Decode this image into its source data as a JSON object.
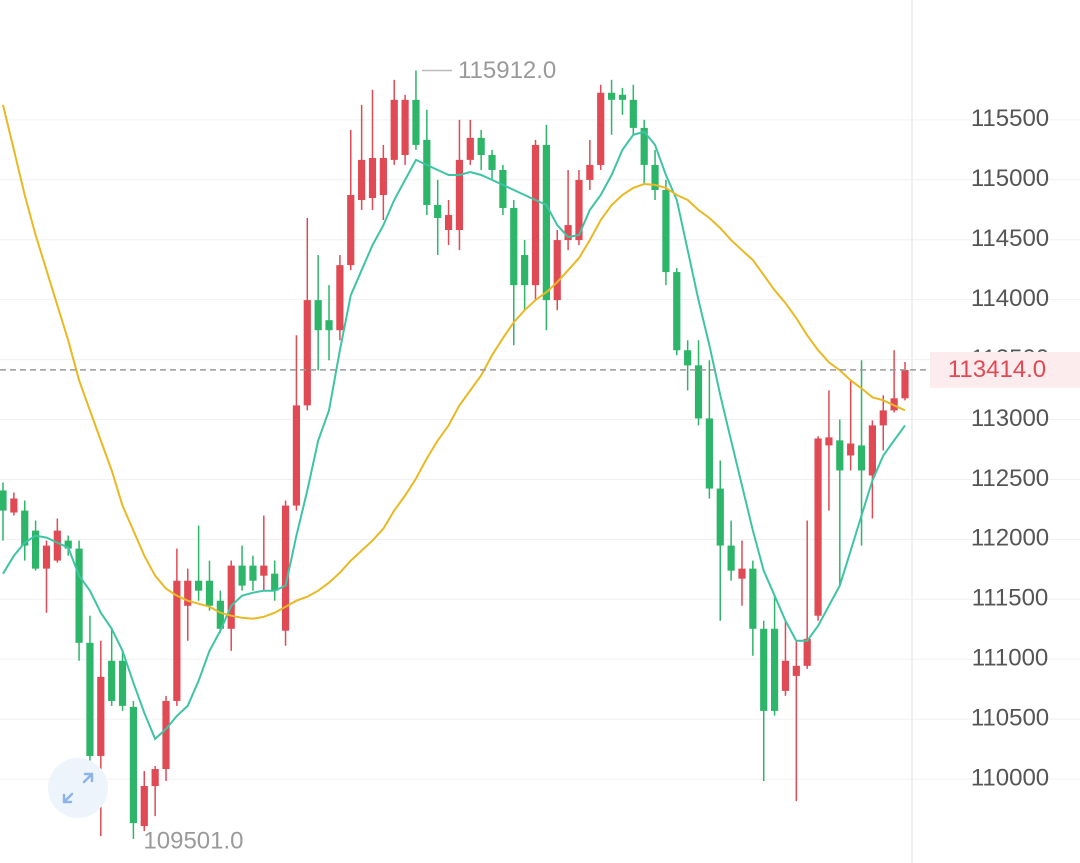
{
  "chart_data": {
    "type": "candlestick",
    "ylim": [
      109300,
      116500
    ],
    "yticks": [
      110000,
      110500,
      111000,
      111500,
      112000,
      112500,
      113000,
      113500,
      114000,
      114500,
      115000,
      115500
    ],
    "grid": true,
    "up_color": "#e04a54",
    "down_color": "#2db56a",
    "high_label": "115912.0",
    "low_label": "109501.0",
    "last_price": {
      "value": 113414,
      "label": "113414.0"
    },
    "open": [
      112408,
      112224,
      112240,
      112073,
      111756,
      111823,
      111990,
      111923,
      111137,
      110193,
      110987,
      110987,
      110602,
      109608,
      109942,
      110084,
      110652,
      111446,
      111655,
      111655,
      111488,
      111254,
      111781,
      111781,
      111697,
      111714,
      111238,
      112282,
      113118,
      113996,
      113829,
      113745,
      114288,
      114831,
      114848,
      114873,
      115166,
      115207,
      115667,
      115333,
      114790,
      114581,
      114581,
      115166,
      115350,
      115207,
      115082,
      114765,
      114372,
      114121,
      115291,
      113996,
      114497,
      114497,
      114999,
      115124,
      115726,
      115709,
      115667,
      115433,
      115124,
      114915,
      114230,
      113578,
      113452,
      113009,
      112424,
      111948,
      111672,
      111756,
      111254,
      111254,
      110736,
      110861,
      110945,
      111363,
      112784,
      112826,
      112700,
      112784,
      112533,
      112951,
      113076,
      113177
    ],
    "high": [
      112475,
      112391,
      112324,
      112157,
      111990,
      112174,
      112032,
      111990,
      111363,
      111154,
      111254,
      111070,
      110652,
      110067,
      110109,
      110694,
      111923,
      111756,
      112115,
      111823,
      111572,
      111823,
      111948,
      111864,
      112199,
      111823,
      112324,
      113703,
      114681,
      114372,
      114121,
      114372,
      115416,
      115625,
      115751,
      115291,
      115834,
      115709,
      115912,
      115584,
      114999,
      114831,
      115500,
      115500,
      115416,
      115249,
      115124,
      114831,
      114497,
      115333,
      115458,
      114581,
      115082,
      115082,
      115333,
      115793,
      115834,
      115767,
      115793,
      115500,
      115249,
      114999,
      114263,
      113661,
      113661,
      113494,
      112658,
      112157,
      111990,
      111823,
      111321,
      111530,
      111321,
      111154,
      112157,
      112860,
      113243,
      113000,
      113327,
      113494,
      112993,
      113202,
      113578,
      113480
    ],
    "low": [
      111990,
      112199,
      111823,
      111739,
      111388,
      111806,
      111864,
      110987,
      109900,
      109524,
      110611,
      110569,
      109501,
      109566,
      109691,
      109984,
      110611,
      111154,
      111488,
      111405,
      111221,
      111070,
      111572,
      111572,
      111572,
      111488,
      111112,
      112240,
      113076,
      113411,
      113494,
      113661,
      114246,
      114748,
      114748,
      114664,
      115124,
      115124,
      115249,
      114706,
      114372,
      114455,
      114413,
      115124,
      115082,
      114999,
      114706,
      113620,
      113912,
      113996,
      113745,
      113912,
      114413,
      114455,
      114915,
      115082,
      115375,
      115542,
      115375,
      114957,
      114831,
      114121,
      113536,
      113243,
      112951,
      112341,
      111321,
      111655,
      111446,
      111029,
      109984,
      110530,
      110694,
      109816,
      110920,
      111321,
      112240,
      111614,
      112575,
      111948,
      112174,
      112742,
      113059,
      113160
    ],
    "close": [
      112240,
      112341,
      111948,
      111756,
      111948,
      112073,
      111923,
      111137,
      110193,
      110853,
      110652,
      110611,
      109633,
      109942,
      110084,
      110652,
      111655,
      111655,
      111572,
      111446,
      111254,
      111781,
      111614,
      111655,
      111781,
      111572,
      112282,
      113118,
      113996,
      113745,
      113745,
      114288,
      114873,
      115166,
      115182,
      115182,
      115667,
      115667,
      115291,
      114790,
      114681,
      114706,
      115166,
      115350,
      115207,
      115082,
      114765,
      114121,
      114121,
      115291,
      113996,
      114497,
      114622,
      114999,
      115124,
      115726,
      115667,
      115667,
      115433,
      115124,
      114915,
      114230,
      113578,
      113452,
      113009,
      112424,
      111948,
      111739,
      111756,
      111254,
      110569,
      110569,
      110987,
      110945,
      111171,
      112842,
      112851,
      112575,
      112800,
      112575,
      112951,
      113076,
      113177,
      113414
    ],
    "series": [
      {
        "color": "#3ec4a4",
        "values": [
          111714,
          111864,
          111973,
          112031,
          112015,
          111973,
          111931,
          111697,
          111572,
          111388,
          111254,
          111070,
          110803,
          110552,
          110335,
          110418,
          110527,
          110611,
          110820,
          111070,
          111237,
          111446,
          111530,
          111555,
          111572,
          111572,
          111614,
          112031,
          112408,
          112825,
          113076,
          113578,
          114037,
          114246,
          114455,
          114622,
          114831,
          114999,
          115166,
          115124,
          115082,
          115040,
          115040,
          115065,
          115040,
          114999,
          114957,
          114915,
          114873,
          114831,
          114790,
          114622,
          114522,
          114539,
          114748,
          114873,
          115040,
          115249,
          115375,
          115400,
          115291,
          115040,
          114831,
          114413,
          113996,
          113619,
          113202,
          112825,
          112449,
          112073,
          111739,
          111530,
          111321,
          111154,
          111154,
          111279,
          111446,
          111614,
          111906,
          112199,
          112491,
          112700,
          112825,
          112951
        ]
      },
      {
        "color": "#e8b923",
        "values": [
          115625,
          115249,
          114873,
          114539,
          114246,
          113954,
          113661,
          113327,
          113076,
          112825,
          112575,
          112282,
          112073,
          111864,
          111697,
          111589,
          111530,
          111488,
          111463,
          111438,
          111388,
          111363,
          111346,
          111338,
          111354,
          111388,
          111438,
          111488,
          111522,
          111572,
          111639,
          111722,
          111823,
          111906,
          111990,
          112090,
          112240,
          112366,
          112508,
          112675,
          112825,
          112951,
          113118,
          113243,
          113369,
          113536,
          113678,
          113812,
          113912,
          113996,
          114062,
          114146,
          114246,
          114347,
          114497,
          114664,
          114790,
          114873,
          114932,
          114965,
          114957,
          114932,
          114873,
          114831,
          114748,
          114681,
          114597,
          114497,
          114413,
          114330,
          114205,
          114079,
          113971,
          113845,
          113703,
          113578,
          113477,
          113411,
          113327,
          113260,
          113185,
          113160,
          113118,
          113076
        ]
      }
    ]
  }
}
